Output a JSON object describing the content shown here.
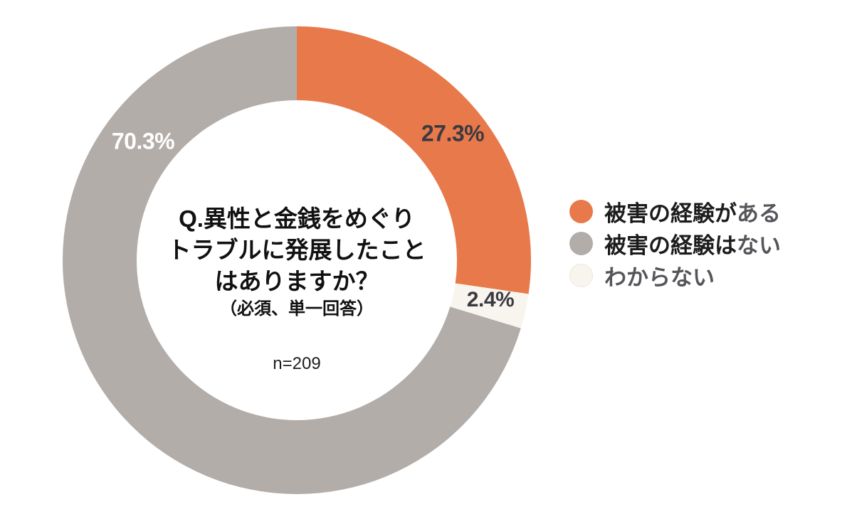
{
  "chart_data": {
    "type": "pie",
    "subtype": "donut",
    "start_angle_deg": 0,
    "direction": "clockwise",
    "hole_ratio": 0.684,
    "segments": [
      {
        "label": "被害の経験がある",
        "value": 27.3,
        "pct_label": "27.3%",
        "color": "#E8794B",
        "pct_label_color": "#3A3A40"
      },
      {
        "label": "わからない",
        "value": 2.4,
        "pct_label": "2.4%",
        "color": "#F8F5EE",
        "pct_label_color": "#3A3A40"
      },
      {
        "label": "被害の経験はない",
        "value": 70.3,
        "pct_label": "70.3%",
        "color": "#B3ADA9",
        "pct_label_color": "#FFFFFF"
      }
    ],
    "title": "Q.異性と金銭をめぐりトラブルに発展したことはありますか？",
    "note": "（必須、単一回答）",
    "sample_size": 209,
    "legend_position": "right"
  },
  "center": {
    "question_line1": "Q.異性と金銭をめぐり",
    "question_line2": "トラブルに発展したこと",
    "question_line3": "はありますか？",
    "note": "（必須、単一回答）",
    "sample_size_label": "n=209"
  },
  "legend": {
    "items": [
      {
        "prefix": "被害の経験が",
        "suffix": "ある",
        "color": "#E8794B"
      },
      {
        "prefix": "被害の経験は",
        "suffix": "ない",
        "color": "#B3ADA9"
      },
      {
        "prefix": "",
        "suffix": "わからない",
        "color": "#F8F5EE"
      }
    ]
  },
  "colors": {
    "background": "#FFFFFF",
    "accent_orange": "#E8794B",
    "neutral_gray": "#B3ADA9",
    "cream": "#F8F5EE",
    "text_dark": "#111111",
    "text_soft": "#55555B"
  }
}
